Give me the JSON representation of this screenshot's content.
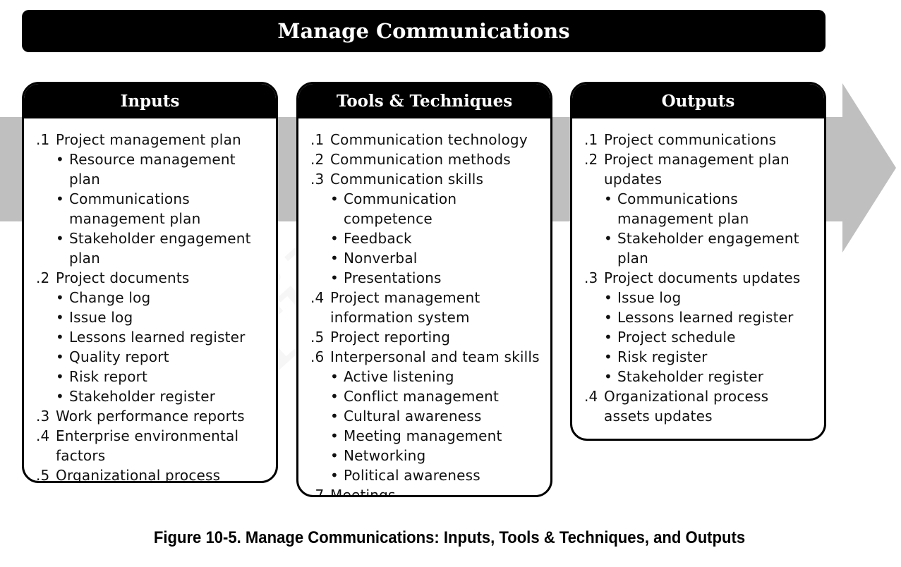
{
  "title": "Manage Communications",
  "caption": "Figure 10-5. Manage Communications: Inputs, Tools & Techniques, and Outputs",
  "bullet_char": "•",
  "watermark": "tribu",
  "colors": {
    "header_bg": "#000000",
    "arrow": "#bfbfbf",
    "text": "#111111"
  },
  "boxes": [
    {
      "header": "Inputs",
      "items": [
        {
          "num": ".1",
          "text": "Project management plan",
          "subs": [
            "Resource management plan",
            "Communications management plan",
            "Stakeholder engagement plan"
          ]
        },
        {
          "num": ".2",
          "text": "Project documents",
          "subs": [
            "Change log",
            "Issue log",
            "Lessons learned register",
            "Quality report",
            "Risk report",
            "Stakeholder register"
          ]
        },
        {
          "num": ".3",
          "text": "Work performance reports",
          "subs": []
        },
        {
          "num": ".4",
          "text": "Enterprise environmental factors",
          "subs": []
        },
        {
          "num": ".5",
          "text": "Organizational process assets",
          "subs": []
        }
      ]
    },
    {
      "header": "Tools & Techniques",
      "items": [
        {
          "num": ".1",
          "text": "Communication technology",
          "subs": []
        },
        {
          "num": ".2",
          "text": "Communication methods",
          "subs": []
        },
        {
          "num": ".3",
          "text": "Communication skills",
          "subs": [
            "Communication competence",
            "Feedback",
            "Nonverbal",
            "Presentations"
          ]
        },
        {
          "num": ".4",
          "text": "Project management information system",
          "subs": []
        },
        {
          "num": ".5",
          "text": "Project reporting",
          "subs": []
        },
        {
          "num": ".6",
          "text": "Interpersonal and team skills",
          "subs": [
            "Active listening",
            "Conflict management",
            "Cultural awareness",
            "Meeting management",
            "Networking",
            "Political awareness"
          ]
        },
        {
          "num": ".7",
          "text": "Meetings",
          "subs": []
        }
      ]
    },
    {
      "header": "Outputs",
      "items": [
        {
          "num": ".1",
          "text": "Project communications",
          "subs": []
        },
        {
          "num": ".2",
          "text": "Project management plan updates",
          "subs": [
            "Communications management plan",
            "Stakeholder engagement plan"
          ]
        },
        {
          "num": ".3",
          "text": "Project documents updates",
          "subs": [
            "Issue log",
            "Lessons learned register",
            "Project schedule",
            "Risk register",
            "Stakeholder register"
          ]
        },
        {
          "num": ".4",
          "text": "Organizational process assets  updates",
          "subs": []
        }
      ]
    }
  ]
}
